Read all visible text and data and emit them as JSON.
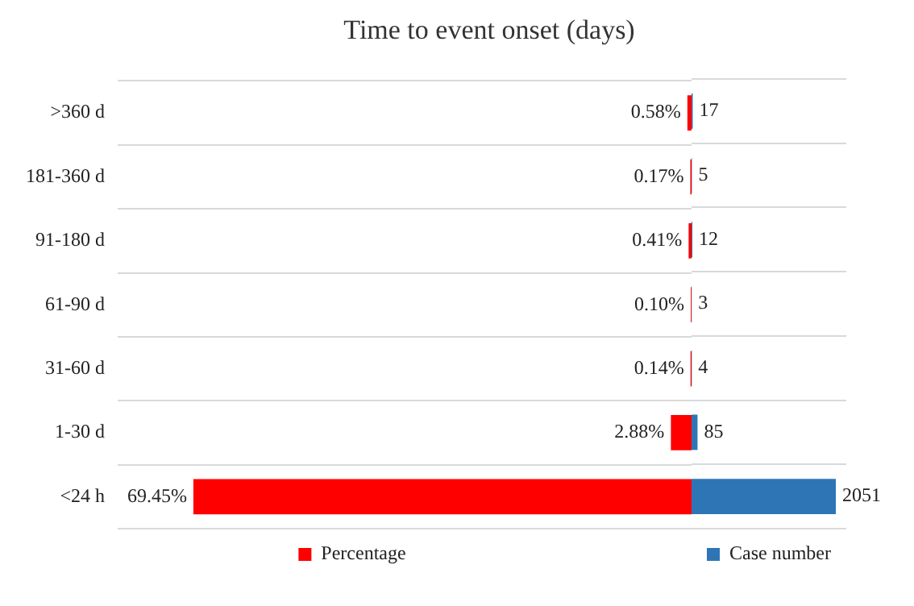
{
  "chart_data": [
    {
      "type": "bar",
      "orientation": "horizontal",
      "title": "Time to event onset (days)",
      "categories": [
        ">360 d",
        "181-360 d",
        "91-180 d",
        "61-90 d",
        "31-60 d",
        "1-30 d",
        "<24 h"
      ],
      "series": [
        {
          "name": "Percentage",
          "color": "#ff0000",
          "values": [
            0.58,
            0.17,
            0.41,
            0.1,
            0.14,
            2.88,
            69.45
          ],
          "value_labels": [
            "0.58%",
            "0.17%",
            "0.41%",
            "0.10%",
            "0.14%",
            "2.88%",
            "69.45%"
          ]
        }
      ],
      "xlim": [
        80,
        0
      ],
      "tick_labels": "y",
      "grid": "y",
      "legend": "bottom"
    },
    {
      "type": "bar",
      "orientation": "horizontal",
      "categories": [
        null,
        null,
        null,
        null,
        null,
        null,
        null
      ],
      "series": [
        {
          "name": "Case number",
          "color": "#2e75b6",
          "values": [
            17,
            5,
            12,
            3,
            4,
            85,
            2051
          ],
          "value_labels": [
            "17",
            "5",
            "12",
            "3",
            "4",
            "85",
            "2051"
          ]
        }
      ],
      "xlim": [
        0,
        2200
      ],
      "tick_labels": false,
      "grid": "y",
      "legend": "bottom"
    }
  ]
}
